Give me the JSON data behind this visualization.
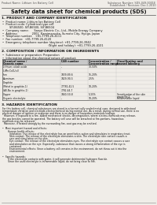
{
  "bg_color": "#f0ede8",
  "title": "Safety data sheet for chemical products (SDS)",
  "header_left": "Product Name: Lithium Ion Battery Cell",
  "header_right_line1": "Substance Number: SDS-049-0001E",
  "header_right_line2": "Established / Revision: Dec.1.2010",
  "section1_title": "1. PRODUCT AND COMPANY IDENTIFICATION",
  "section1_lines": [
    "•  Product name: Lithium Ion Battery Cell",
    "•  Product code: Cylindrical-type cell",
    "        SIY-B6500, SIY-B6500, SIY-B6504",
    "•  Company name:      Sanyo Electric Co., Ltd., Mobile Energy Company",
    "•  Address:                2001  Kamimaruoka, Sumoto City, Hyogo, Japan",
    "•  Telephone number:   +81-7799-26-4111",
    "•  Fax number:  +81-7799-26-4120",
    "•  Emergency telephone number (daytime): +81-7799-26-3942",
    "                                                    (Night and holiday): +81-7799-26-4101"
  ],
  "section2_title": "2. COMPOSITION / INFORMATION ON INGREDIENTS",
  "section2_intro": "•  Substance or preparation: Preparation",
  "section2_sub": "•  Information about the chemical nature of product:",
  "table_headers": [
    "Chemical name /",
    "CAS number",
    "Concentration /",
    "Classification and"
  ],
  "table_headers2": [
    "Generic name",
    "",
    "Concentration range",
    "hazard labeling"
  ],
  "table_rows": [
    [
      "Lithium cobalt oxide",
      "-",
      "30-50%",
      ""
    ],
    [
      "(LiMn:CoO₂(s))",
      "",
      "",
      ""
    ],
    [
      "Iron",
      "7439-89-6",
      "15-20%",
      ""
    ],
    [
      "Aluminum",
      "7429-90-5",
      "2-5%",
      ""
    ],
    [
      "Graphite",
      "",
      "",
      ""
    ],
    [
      "(Metal in graphite-1)",
      "77782-42-5",
      "10-20%",
      ""
    ],
    [
      "(All-No in graphite-1)",
      "7782-44-7",
      "",
      ""
    ],
    [
      "Copper",
      "7440-50-8",
      "5-15%",
      "Sensitization of the skin\ngroup No.2"
    ],
    [
      "Organic electrolyte",
      "-",
      "10-20%",
      "Inflammable liquid"
    ]
  ],
  "section3_title": "3. HAZARDS IDENTIFICATION",
  "section3_text": [
    "For this battery cell, chemical substances are stored in a hermetically sealed metal case, designed to withstand",
    "temperature variation and electrode-electrochemical during normal use. As a result, during normal use, there is no",
    "physical danger of ignition or explosion and there is no danger of hazardous materials leakage.",
    "  However, if exposed to a fire, added mechanical shocks, decomposition, where electro-chemicals may release,",
    "the gas besides cannot be operated. The battery cell case will be breached at fire-portions, hazardous",
    "materials may be released.",
    "  Moreover, if heated strongly by the surrounding fire, soot gas may be emitted.",
    "",
    "•  Most important hazard and effects:",
    "       Human health effects:",
    "         Inhalation: The release of the electrolyte has an anesthetics action and stimulates in respiratory tract.",
    "         Skin contact: The release of the electrolyte stimulates a skin. The electrolyte skin contact causes a",
    "         sore and stimulation on the skin.",
    "         Eye contact: The release of the electrolyte stimulates eyes. The electrolyte eye contact causes a sore",
    "         and stimulation on the eye. Especially, substance that causes a strong inflammation of the eye is",
    "         contained.",
    "         Environmental effects: Since a battery cell remains in the environment, do not throw out it into the",
    "         environment.",
    "",
    "•  Specific hazards:",
    "       If the electrolyte contacts with water, it will generate detrimental hydrogen fluoride.",
    "       Since the used electrolyte is inflammable liquid, do not bring close to fire."
  ]
}
